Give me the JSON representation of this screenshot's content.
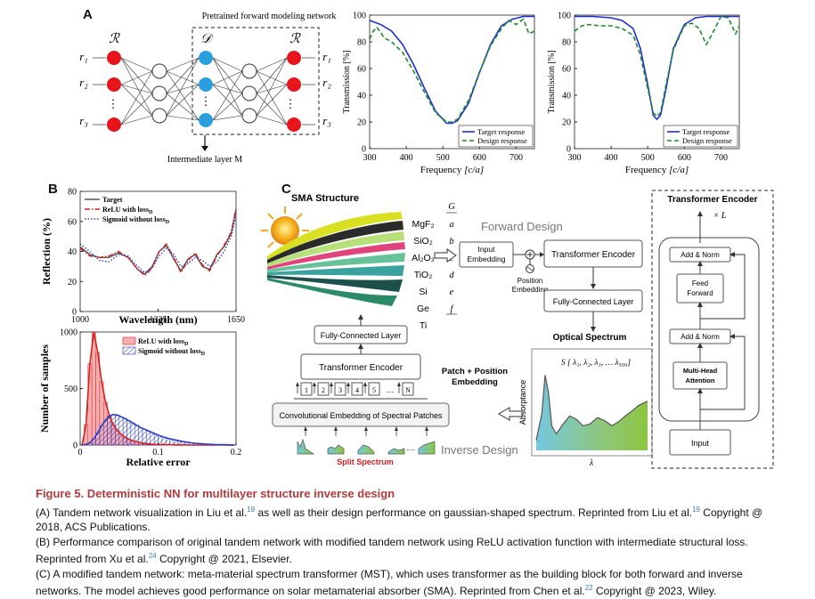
{
  "panelA": {
    "letter": "A",
    "network_title": "Pretrained forward modeling network",
    "layer_R1": "ℛ",
    "layer_D": "𝒟",
    "layer_R2": "ℛ",
    "inputs": [
      "r₁",
      "r₂",
      "⋮",
      "r₃"
    ],
    "outputs": [
      "r₁",
      "r₂",
      "⋮",
      "r₃"
    ],
    "intermediate_label": "Intermediate layer M"
  },
  "chart_data": [
    {
      "type": "line",
      "id": "A-left",
      "xlabel": "Frequency [c/a]",
      "ylabel": "Transmission [%]",
      "xlim": [
        300,
        750
      ],
      "ylim": [
        0,
        100
      ],
      "xticks": [
        "300",
        "400",
        "500",
        "600",
        "700"
      ],
      "yticks": [
        "0",
        "20",
        "40",
        "60",
        "80",
        "100"
      ],
      "series": [
        {
          "name": "Target response",
          "color": "#1f2fd1",
          "style": "solid",
          "x": [
            300,
            330,
            360,
            390,
            420,
            450,
            480,
            510,
            525,
            540,
            570,
            600,
            630,
            660,
            690,
            720,
            750
          ],
          "y": [
            96,
            93,
            88,
            78,
            63,
            45,
            28,
            19,
            19,
            21,
            34,
            57,
            78,
            92,
            97,
            99,
            99
          ]
        },
        {
          "name": "Design response",
          "color": "#1e8a2e",
          "style": "dashed",
          "x": [
            300,
            310,
            320,
            340,
            360,
            390,
            420,
            450,
            480,
            510,
            525,
            540,
            570,
            600,
            630,
            660,
            680,
            700,
            720,
            735,
            750
          ],
          "y": [
            82,
            88,
            91,
            83,
            80,
            72,
            58,
            42,
            27,
            20,
            20,
            22,
            36,
            57,
            77,
            90,
            96,
            93,
            97,
            86,
            88
          ]
        }
      ]
    },
    {
      "type": "line",
      "id": "A-right",
      "xlabel": "Frequency [c/a]",
      "ylabel": "Transmission [%]",
      "xlim": [
        300,
        750
      ],
      "ylim": [
        0,
        100
      ],
      "xticks": [
        "300",
        "400",
        "500",
        "600",
        "700"
      ],
      "yticks": [
        "0",
        "20",
        "40",
        "60",
        "80",
        "100"
      ],
      "series": [
        {
          "name": "Target response",
          "color": "#1f2fd1",
          "style": "solid",
          "x": [
            300,
            350,
            400,
            430,
            460,
            480,
            500,
            515,
            525,
            535,
            550,
            570,
            600,
            630,
            660,
            700,
            750
          ],
          "y": [
            99,
            99,
            98,
            96,
            90,
            75,
            48,
            25,
            22,
            25,
            45,
            75,
            93,
            98,
            99,
            99,
            99
          ]
        },
        {
          "name": "Design response",
          "color": "#1e8a2e",
          "style": "dashed",
          "x": [
            300,
            320,
            340,
            370,
            400,
            430,
            460,
            480,
            500,
            515,
            525,
            535,
            550,
            570,
            600,
            620,
            640,
            660,
            680,
            700,
            720,
            740,
            750
          ],
          "y": [
            88,
            92,
            93,
            92,
            92,
            90,
            85,
            70,
            45,
            27,
            24,
            27,
            48,
            74,
            92,
            94,
            90,
            78,
            88,
            99,
            98,
            86,
            92
          ]
        }
      ]
    },
    {
      "type": "line",
      "id": "B-top",
      "xlabel": "Wavelength (nm)",
      "ylabel": "Reflection (%)",
      "xlim": [
        1000,
        1650
      ],
      "ylim": [
        0,
        80
      ],
      "xticks": [
        "1000",
        "1325",
        "1650"
      ],
      "yticks": [
        "0",
        "20",
        "40",
        "60",
        "80"
      ],
      "series": [
        {
          "name": "Target",
          "color": "#555555",
          "style": "solid",
          "x": [
            1000,
            1040,
            1080,
            1120,
            1160,
            1200,
            1240,
            1270,
            1300,
            1330,
            1360,
            1390,
            1420,
            1450,
            1480,
            1510,
            1540,
            1570,
            1600,
            1630,
            1650
          ],
          "y": [
            43,
            38,
            36,
            36,
            39,
            36,
            28,
            25,
            30,
            40,
            44,
            35,
            27,
            35,
            38,
            30,
            28,
            38,
            43,
            52,
            68
          ]
        },
        {
          "name": "ReLU with loss",
          "color": "#d42020",
          "style": "dashdot",
          "x": [
            1000,
            1040,
            1080,
            1120,
            1160,
            1200,
            1240,
            1270,
            1300,
            1330,
            1360,
            1390,
            1420,
            1450,
            1480,
            1510,
            1540,
            1570,
            1600,
            1630,
            1650
          ],
          "y": [
            42,
            37,
            36,
            37,
            40,
            36,
            28,
            24,
            29,
            40,
            45,
            36,
            26,
            34,
            39,
            31,
            27,
            37,
            44,
            53,
            69
          ]
        },
        {
          "name": "Sigmoid without loss",
          "color": "#2a45c8",
          "style": "dotted",
          "x": [
            1000,
            1040,
            1080,
            1120,
            1160,
            1200,
            1240,
            1270,
            1300,
            1330,
            1360,
            1390,
            1420,
            1450,
            1480,
            1510,
            1540,
            1570,
            1600,
            1630,
            1650
          ],
          "y": [
            45,
            40,
            34,
            33,
            38,
            37,
            30,
            26,
            29,
            37,
            42,
            38,
            30,
            32,
            36,
            34,
            30,
            33,
            40,
            50,
            64
          ]
        }
      ]
    },
    {
      "type": "bar",
      "id": "B-bottom",
      "xlabel": "Relative error",
      "ylabel": "Number of samples",
      "xlim": [
        0,
        0.2
      ],
      "ylim": [
        0,
        1000
      ],
      "xticks": [
        "0",
        "0.1",
        "0.2"
      ],
      "yticks": [
        "0",
        "500",
        "1000"
      ],
      "bin_width": 0.005,
      "series": [
        {
          "name": "ReLU with loss",
          "color": "#e04040",
          "values": [
            0,
            180,
            720,
            1000,
            820,
            560,
            380,
            260,
            180,
            130,
            95,
            70,
            50,
            38,
            28,
            20,
            14,
            10,
            7,
            5,
            4,
            3,
            2,
            2,
            1,
            1,
            1,
            0,
            0,
            0,
            0,
            0,
            0,
            0,
            0,
            0,
            0,
            0,
            0,
            0
          ]
        },
        {
          "name": "Sigmoid without loss",
          "color": "#2a3ec8",
          "values": [
            0,
            5,
            20,
            55,
            110,
            170,
            220,
            255,
            270,
            265,
            250,
            235,
            215,
            195,
            175,
            155,
            140,
            125,
            110,
            95,
            82,
            70,
            60,
            52,
            44,
            37,
            30,
            25,
            20,
            16,
            13,
            10,
            8,
            6,
            5,
            4,
            3,
            2,
            1,
            1
          ]
        }
      ]
    },
    {
      "type": "line",
      "id": "C-spectrum",
      "xlabel": "λ",
      "ylabel": "Absorptance",
      "title": "Optical Spectrum",
      "series": [
        {
          "name": "Absorptance",
          "color": "#555555",
          "x": [
            0,
            5,
            8,
            11,
            14,
            18,
            24,
            30,
            36,
            42,
            48,
            55,
            62,
            68,
            74,
            80,
            86,
            92,
            100
          ],
          "y": [
            0.12,
            0.45,
            0.92,
            0.7,
            0.3,
            0.2,
            0.32,
            0.42,
            0.38,
            0.3,
            0.32,
            0.4,
            0.36,
            0.3,
            0.35,
            0.42,
            0.48,
            0.55,
            0.6
          ]
        }
      ]
    }
  ],
  "panelB": {
    "letter": "B",
    "legend_top": [
      "Target",
      "ReLU with loss",
      "Sigmoid without loss"
    ],
    "legend_top_sub": [
      "",
      "D",
      "D"
    ],
    "legend_bottom": [
      "ReLU with loss",
      "Sigmoid without loss"
    ],
    "legend_bottom_sub": [
      "D",
      "D"
    ]
  },
  "panelA_charts": {
    "legend": [
      "Target response",
      "Design response"
    ],
    "xlabel_main": "Frequency",
    "xlabel_unit": "[c/a]"
  },
  "panelC": {
    "letter": "C",
    "sma_title": "SMA Structure",
    "materials": [
      "MgF₂",
      "SiO₂",
      "Al₂O₃",
      "TiO₂",
      "Si",
      "Ge",
      "Ti"
    ],
    "letters": [
      "G",
      "a",
      "b",
      "c",
      "d",
      "e",
      "f"
    ],
    "forward_design": "Forward Design",
    "inverse_design": "Inverse Design",
    "input_embedding": [
      "Input",
      "Embedding"
    ],
    "position_embedding": [
      "Position",
      "Embedding"
    ],
    "transformer_encoder": "Transformer Encoder",
    "fc_layer": "Fully-Connected Layer",
    "optical_spectrum": "Optical Spectrum",
    "spectrum_formula": "S [ λ₁, λ₂, λ₃, … λ₅₀₀]",
    "absorptance": "Absorptance",
    "lambda": "λ",
    "patch_position": [
      "Patch + Position",
      "Embedding"
    ],
    "conv_embedding": "Convolutional Embedding of Spectral Patches",
    "split_spectrum": "Split Spectrum",
    "tokens": [
      "1",
      "2",
      "3",
      "4",
      "5",
      "N"
    ],
    "encoder_box_title": "Transformer Encoder",
    "times_L": "× L",
    "add_norm": "Add & Norm",
    "feed_forward": [
      "Feed",
      "Forward"
    ],
    "multi_head": [
      "Multi-Head",
      "Attention"
    ],
    "input": "Input"
  },
  "caption": {
    "title": "Figure 5. Deterministic NN for multilayer structure inverse design",
    "a1": "(A) Tandem network visualization in Liu et al.",
    "a_ref1": "19",
    "a2": " as well as their design performance on gaussian-shaped spectrum. Reprinted from Liu et al.",
    "a_ref2": "19",
    "a3": " Copyright @ 2018, ACS Publications.",
    "b1": "(B) Performance comparison of original tandem network with modified tandem network using ReLU activation function with intermediate structural loss. Reprinted from Xu et al.",
    "b_ref": "24",
    "b2": " Copyright @ 2021, Elsevier.",
    "c1": "(C) A modified tandem network: meta-material spectrum transformer (MST), which uses transformer as the building block for both forward and inverse networks. The model achieves good performance on solar metamaterial absorber (SMA). Reprinted from Chen et al.",
    "c_ref": "22",
    "c2": " Copyright @ 2023, Wiley."
  }
}
